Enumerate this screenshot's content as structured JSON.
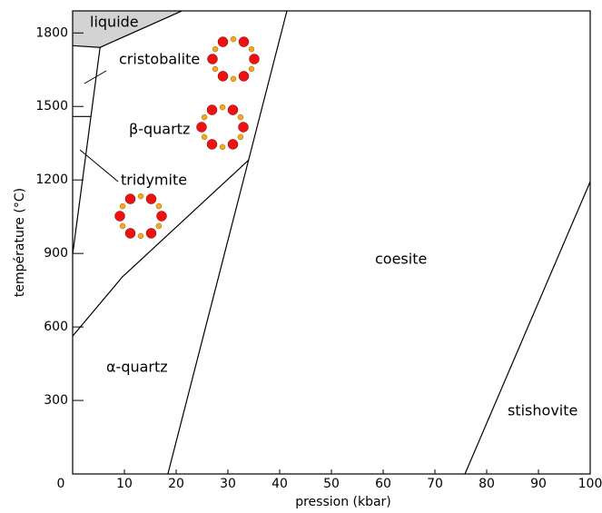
{
  "chart_data": {
    "type": "line",
    "xlabel": "pression (kbar)",
    "ylabel": "température (°C)",
    "xlim": [
      0,
      100
    ],
    "ylim": [
      0,
      1890
    ],
    "xticks": [
      0,
      10,
      20,
      30,
      40,
      50,
      60,
      70,
      80,
      90,
      100
    ],
    "yticks": [
      300,
      600,
      900,
      1200,
      1500,
      1800
    ],
    "series": [
      {
        "color": "#000000",
        "x": [
          18.4,
          41.4
        ],
        "values": [
          0,
          1890
        ]
      },
      {
        "color": "#000000",
        "x": [
          75.8,
          100
        ],
        "values": [
          0,
          1193
        ]
      },
      {
        "color": "#000000",
        "x": [
          0,
          9.6,
          34
        ],
        "values": [
          563,
          804,
          1281
        ]
      },
      {
        "color": "#000000",
        "x": [
          0,
          5.3
        ],
        "values": [
          896,
          1741
        ]
      },
      {
        "color": "#000000",
        "x": [
          0,
          5.3,
          21
        ],
        "values": [
          1748,
          1741,
          1889
        ]
      },
      {
        "color": "#000000",
        "x": [
          0,
          3.5
        ],
        "values": [
          1459,
          1459
        ]
      }
    ],
    "regions": [
      {
        "color": "#d3d3d3",
        "x": [
          0,
          21,
          5.3,
          0
        ],
        "values": [
          1890,
          1890,
          1741,
          1748
        ]
      }
    ],
    "annotations": [
      "liquide",
      "cristobalite",
      "β-quartz",
      "tridymite",
      "α-quartz",
      "coesite",
      "stishovite"
    ]
  }
}
